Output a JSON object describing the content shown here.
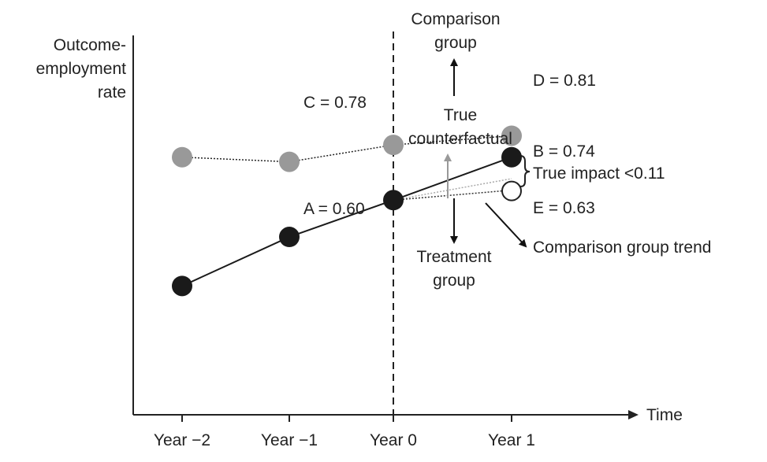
{
  "chart_data": {
    "type": "line",
    "ylabel_lines": [
      "Outcome-",
      "employment",
      "rate"
    ],
    "xlabel": "Time",
    "categories": [
      "Year −2",
      "Year −1",
      "Year 0",
      "Year 1"
    ],
    "series": [
      {
        "role": "comparison",
        "color": "#999999",
        "values": [
          0.74,
          0.725,
          0.78,
          0.81
        ],
        "line_style": "dotted"
      },
      {
        "role": "treatment",
        "color": "#1a1a1a",
        "values": [
          0.32,
          0.48,
          0.6,
          0.74
        ],
        "line_style": "solid"
      }
    ],
    "counterfactual": {
      "from": 0.6,
      "to": 0.63,
      "hollow_color": "#ffffff"
    },
    "true_counterfactual_trend": {
      "from": 0.6,
      "to": 0.67
    },
    "treatment_start": "Year 0",
    "ylim": [
      -0.1,
      1.15
    ],
    "point_labels": {
      "A": "A = 0.60",
      "B": "B = 0.74",
      "C": "C = 0.78",
      "D": "D = 0.81",
      "E": "E = 0.63"
    },
    "annotations": {
      "comparison_group": [
        "Comparison",
        "group"
      ],
      "treatment_group": [
        "Treatment",
        "group"
      ],
      "true_counterfactual": [
        "True",
        "counterfactual"
      ],
      "true_impact": "True impact <0.11",
      "comparison_group_trend": "Comparison group trend"
    },
    "colors": {
      "axis": "#222222",
      "arrow": "#111111",
      "counterfactual_arrow": "#999999"
    }
  }
}
